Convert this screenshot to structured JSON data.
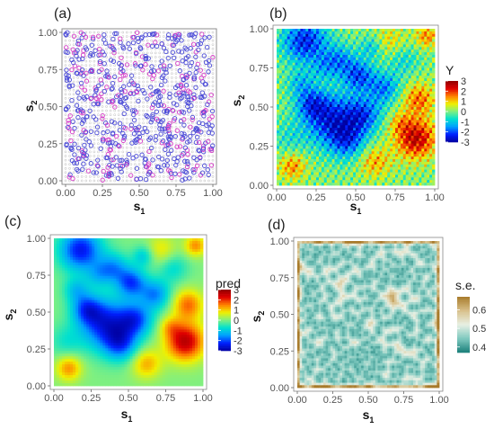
{
  "chart_data": [
    {
      "panel": "(a)",
      "type": "scatter",
      "description_of_marks": "regular gray prediction grid overlaid with observed locations (blue and magenta circles)",
      "xlabel": "s",
      "xlabel_sub": "1",
      "ylabel": "s",
      "ylabel_sub": "2",
      "xlim": [
        0,
        1
      ],
      "ylim": [
        0,
        1
      ],
      "x_ticks": [
        "0.00",
        "0.25",
        "0.50",
        "0.75",
        "1.00"
      ],
      "y_ticks": [
        "0.00",
        "0.25",
        "0.50",
        "0.75",
        "1.00"
      ],
      "grid": false,
      "series": [
        {
          "color": "#4a4ad8"
        },
        {
          "color": "#d63cc8"
        }
      ]
    },
    {
      "panel": "(b)",
      "type": "heatmap",
      "xlabel": "s",
      "xlabel_sub": "1",
      "ylabel": "s",
      "ylabel_sub": "2",
      "xlim": [
        0,
        1
      ],
      "ylim": [
        0,
        1
      ],
      "x_ticks": [
        "0.00",
        "0.25",
        "0.50",
        "0.75",
        "1.00"
      ],
      "y_ticks": [
        "0.00",
        "0.25",
        "0.50",
        "0.75",
        "1.00"
      ],
      "legend": {
        "title": "Y",
        "ticks": [
          "3",
          "2",
          "1",
          "0",
          "-1",
          "-2",
          "-3"
        ],
        "range": [
          -3,
          3
        ],
        "placement": "right"
      },
      "colormap": [
        "#0000a0",
        "#0020ff",
        "#00a0ff",
        "#00e0d0",
        "#80f080",
        "#f0f000",
        "#ff8000",
        "#e00000",
        "#900000"
      ]
    },
    {
      "panel": "(c)",
      "type": "heatmap",
      "xlabel": "s",
      "xlabel_sub": "1",
      "ylabel": "s",
      "ylabel_sub": "2",
      "xlim": [
        0,
        1
      ],
      "ylim": [
        0,
        1
      ],
      "x_ticks": [
        "0.00",
        "0.25",
        "0.50",
        "0.75",
        "1.00"
      ],
      "y_ticks": [
        "0.00",
        "0.25",
        "0.50",
        "0.75",
        "1.00"
      ],
      "legend": {
        "title": "pred",
        "ticks": [
          "3",
          "2",
          "1",
          "0",
          "-1",
          "-2",
          "-3"
        ],
        "range": [
          -3,
          3
        ],
        "placement": "right"
      },
      "colormap": [
        "#0000a0",
        "#0020ff",
        "#00a0ff",
        "#00e0d0",
        "#80f080",
        "#f0f000",
        "#ff8000",
        "#e00000",
        "#900000"
      ]
    },
    {
      "panel": "(d)",
      "type": "heatmap",
      "xlabel": "s",
      "xlabel_sub": "1",
      "ylabel": "s",
      "ylabel_sub": "2",
      "xlim": [
        0,
        1
      ],
      "ylim": [
        0,
        1
      ],
      "x_ticks": [
        "0.00",
        "0.25",
        "0.50",
        "0.75",
        "1.00"
      ],
      "y_ticks": [
        "0.00",
        "0.25",
        "0.50",
        "0.75",
        "1.00"
      ],
      "legend": {
        "title": "s.e.",
        "ticks": [
          "0.6",
          "0.5",
          "0.4"
        ],
        "range": [
          0.37,
          0.67
        ],
        "placement": "right"
      },
      "colormap": [
        "#1a7f7a",
        "#7fc9bf",
        "#e8f0e4",
        "#d8c08a",
        "#a87a2a"
      ]
    }
  ]
}
